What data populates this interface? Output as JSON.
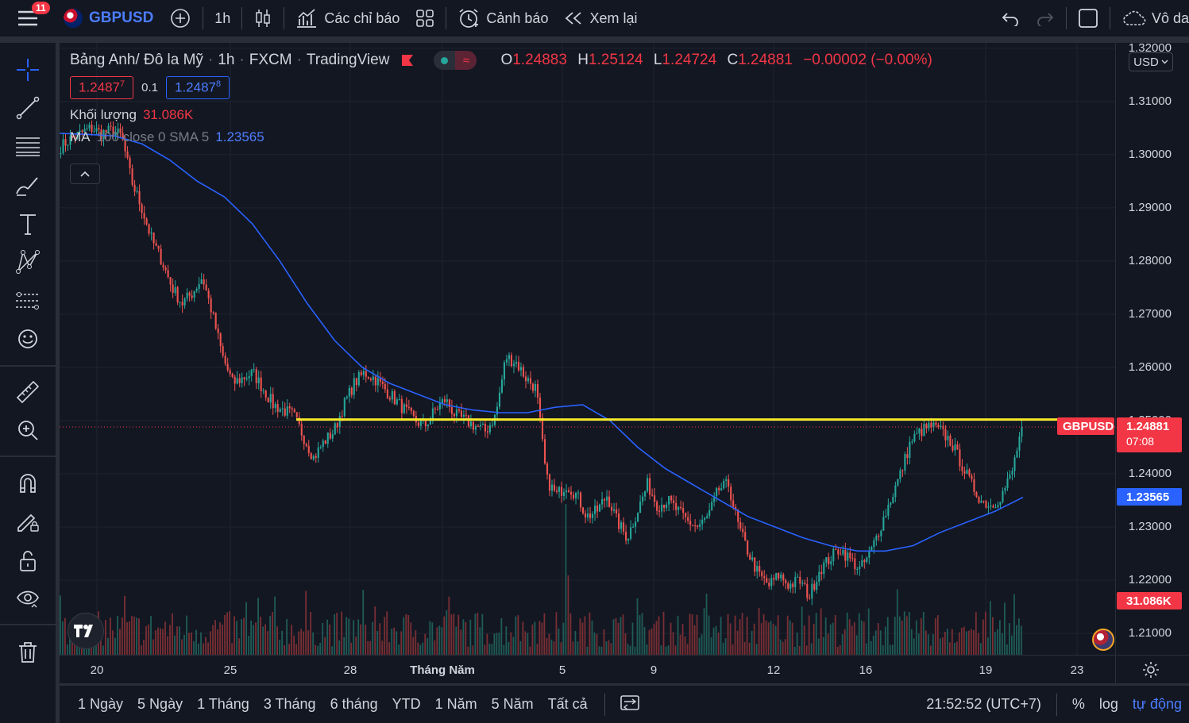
{
  "topbar": {
    "notifications": "11",
    "symbol": "GBPUSD",
    "interval": "1h",
    "indicators_label": "Các chỉ báo",
    "alert_label": "Cảnh báo",
    "replay_label": "Xem lại",
    "layout_label": "Vô da"
  },
  "legend": {
    "title": "Bảng Anh/ Đô la Mỹ",
    "interval": "1h",
    "source": "FXCM",
    "provider": "TradingView",
    "open_label": "O",
    "open": "1.24883",
    "high_label": "H",
    "high": "1.25124",
    "low_label": "L",
    "low": "1.24724",
    "close_label": "C",
    "close": "1.24881",
    "change": "−0.00002 (−0.00%)",
    "bid_main": "1.2487",
    "bid_sup": "7",
    "spread": "0.1",
    "ask_main": "1.2487",
    "ask_sup": "8",
    "volume_label": "Khối lượng",
    "volume_value": "31.086K",
    "ma_label": "MA",
    "ma_params": "100 close 0 SMA 5",
    "ma_value": "1.23565"
  },
  "price_axis": {
    "currency": "USD",
    "labels": [
      "1.32000",
      "1.31000",
      "1.30000",
      "1.29000",
      "1.28000",
      "1.27000",
      "1.26000",
      "1.25000",
      "1.24000",
      "1.23000",
      "1.22000",
      "1.21000"
    ],
    "symbol_tag": "GBPUSD",
    "last_price": "1.24881",
    "countdown": "07:08",
    "ma_tag": "1.23565",
    "volume_tag": "31.086K"
  },
  "time_axis": {
    "labels": [
      "20",
      "25",
      "28",
      "Tháng Năm",
      "5",
      "9",
      "12",
      "16",
      "19",
      "23"
    ]
  },
  "bottombar": {
    "ranges": [
      "1 Ngày",
      "5 Ngày",
      "1 Tháng",
      "3 Tháng",
      "6 tháng",
      "YTD",
      "1 Năm",
      "5 Năm",
      "Tất cả"
    ],
    "time": "21:52:52 (UTC+7)",
    "percent": "%",
    "log": "log",
    "auto": "tự động"
  },
  "colors": {
    "up": "#26a69a",
    "down": "#ef5350",
    "ma": "#2962ff",
    "hline": "#f5e92a",
    "price_tag": "#f23645"
  },
  "chart_data": {
    "type": "candlestick",
    "symbol": "GBPUSD",
    "interval": "1h",
    "horizontal_line": 1.2502,
    "ylim": [
      1.206,
      1.321
    ],
    "y_ticks": [
      1.21,
      1.22,
      1.23,
      1.24,
      1.25,
      1.26,
      1.27,
      1.28,
      1.29,
      1.3,
      1.31,
      1.32
    ],
    "x_ticks": [
      "20",
      "25",
      "28",
      "Tháng Năm",
      "5",
      "9",
      "12",
      "16",
      "19",
      "23"
    ],
    "price_path": [
      1.3015,
      1.303,
      1.304,
      1.305,
      1.304,
      1.3045,
      1.3035,
      1.295,
      1.29,
      1.284,
      1.28,
      1.275,
      1.272,
      1.274,
      1.277,
      1.27,
      1.262,
      1.257,
      1.258,
      1.259,
      1.256,
      1.253,
      1.252,
      1.251,
      1.247,
      1.243,
      1.246,
      1.248,
      1.253,
      1.257,
      1.259,
      1.258,
      1.256,
      1.254,
      1.252,
      1.25,
      1.249,
      1.252,
      1.254,
      1.251,
      1.25,
      1.249,
      1.248,
      1.251,
      1.262,
      1.261,
      1.258,
      1.256,
      1.239,
      1.236,
      1.238,
      1.236,
      1.232,
      1.233,
      1.236,
      1.231,
      1.228,
      1.233,
      1.238,
      1.234,
      1.235,
      1.233,
      1.231,
      1.23,
      1.232,
      1.237,
      1.238,
      1.23,
      1.225,
      1.221,
      1.219,
      1.221,
      1.219,
      1.22,
      1.217,
      1.222,
      1.224,
      1.226,
      1.224,
      1.222,
      1.225,
      1.23,
      1.235,
      1.24,
      1.246,
      1.248,
      1.249,
      1.248,
      1.246,
      1.242,
      1.238,
      1.235,
      1.234,
      1.236,
      1.24,
      1.2488
    ],
    "ma_path": [
      1.304,
      1.3038,
      1.3035,
      1.302,
      1.299,
      1.295,
      1.292,
      1.287,
      1.28,
      1.272,
      1.265,
      1.26,
      1.257,
      1.255,
      1.253,
      1.252,
      1.2515,
      1.2515,
      1.2525,
      1.253,
      1.25,
      1.245,
      1.241,
      1.238,
      1.235,
      1.232,
      1.23,
      1.228,
      1.2265,
      1.2255,
      1.2255,
      1.2265,
      1.229,
      1.231,
      1.233,
      1.2356
    ]
  }
}
